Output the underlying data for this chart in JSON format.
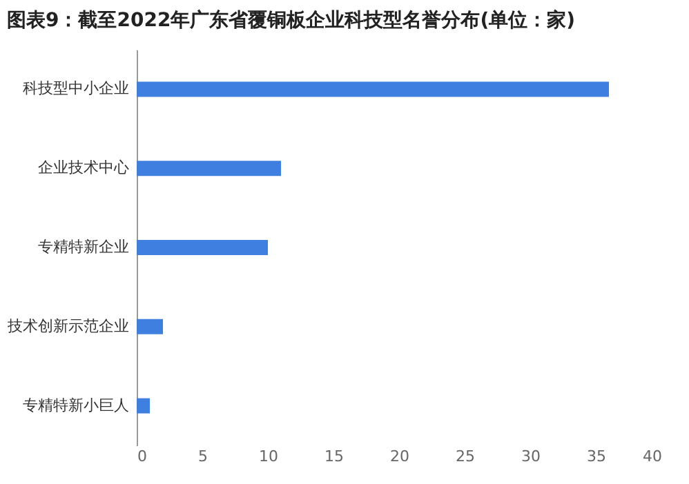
{
  "chart_data": {
    "type": "bar",
    "orientation": "horizontal",
    "title": "图表9：截至2022年广东省覆铜板企业科技型名誉分布(单位：家)",
    "categories": [
      "科技型中小企业",
      "企业技术中心",
      "专精特新企业",
      "技术创新示范企业",
      "专精特新小巨人"
    ],
    "values": [
      36,
      11,
      10,
      2,
      1
    ],
    "color": "#3f7fe0",
    "xlim": [
      0,
      40
    ],
    "xticks": [
      0,
      5,
      10,
      15,
      20,
      25,
      30,
      35,
      40
    ],
    "grid": false
  }
}
